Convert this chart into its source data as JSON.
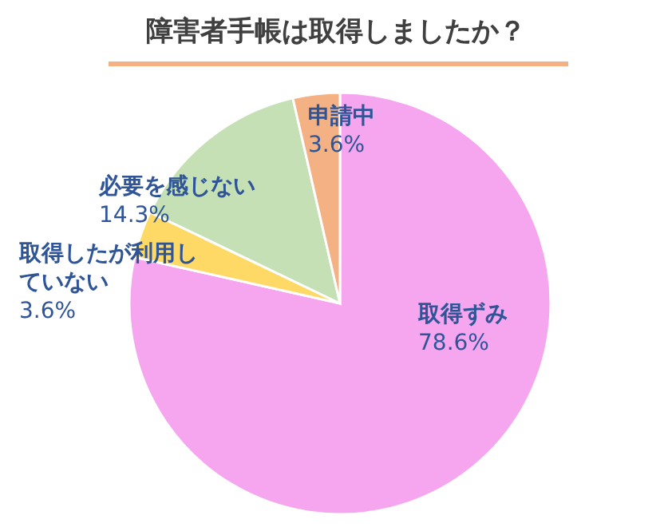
{
  "chart_data": {
    "type": "pie",
    "title": "障害者手帳は取得しましたか？",
    "categories": [
      "取得ずみ",
      "取得したが利用していない",
      "必要を感じない",
      "申請中"
    ],
    "values": [
      78.6,
      3.6,
      14.3,
      3.6
    ],
    "value_labels": [
      "78.6%",
      "3.6%",
      "14.3%",
      "3.6%"
    ],
    "colors": [
      "#f6a6ef",
      "#ffd966",
      "#c5e0b4",
      "#f4b183"
    ]
  }
}
